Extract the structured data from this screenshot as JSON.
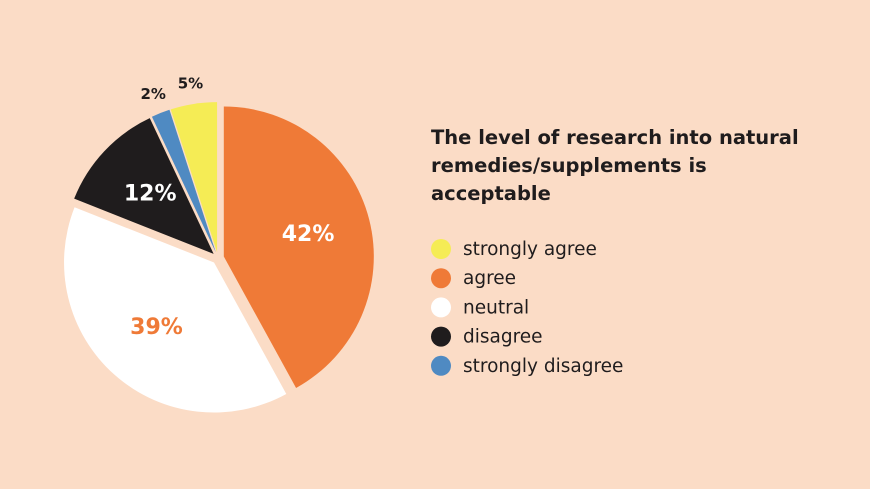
{
  "chart_data": {
    "type": "pie",
    "title": "The level of research into natural remedies/supplements is acceptable",
    "categories": [
      "strongly agree",
      "agree",
      "neutral",
      "disagree",
      "strongly disagree"
    ],
    "values": [
      5,
      42,
      39,
      12,
      2
    ],
    "value_labels": [
      "5%",
      "42%",
      "39%",
      "12%",
      "2%"
    ],
    "colors": [
      "#f5ec55",
      "#ef7a37",
      "#ffffff",
      "#1f1c1d",
      "#4f8ac2"
    ]
  }
}
